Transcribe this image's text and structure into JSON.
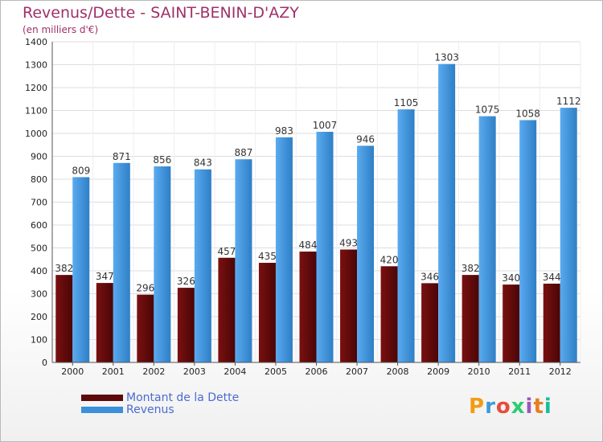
{
  "title": "Revenus/Dette - SAINT-BENIN-D'AZY",
  "subtitle": "(en milliers d'€)",
  "colors": {
    "dette": "#5c0a0a",
    "revenus": "#3c8fd9",
    "title": "#a0306a",
    "legend_text": "#4a6bd1"
  },
  "logo": {
    "letters": [
      "P",
      "r",
      "o",
      "x",
      "i",
      "t",
      "i"
    ],
    "colors": [
      "#f39c12",
      "#3c9ad9",
      "#e74c3c",
      "#2ecc71",
      "#9b59b6",
      "#e67e22",
      "#1abc9c"
    ]
  },
  "legend": [
    {
      "label": "Montant de la Dette",
      "color": "#5c0a0a"
    },
    {
      "label": "Revenus",
      "color": "#3c8fd9"
    }
  ],
  "chart_data": {
    "type": "bar",
    "title": "Revenus/Dette - SAINT-BENIN-D'AZY",
    "ylabel": "(en milliers d'€)",
    "xlabel": "",
    "ylim": [
      0,
      1400
    ],
    "yticks": [
      0,
      100,
      200,
      300,
      400,
      500,
      600,
      700,
      800,
      900,
      1000,
      1100,
      1200,
      1300,
      1400
    ],
    "grid": true,
    "categories": [
      "2000",
      "2001",
      "2002",
      "2003",
      "2004",
      "2005",
      "2006",
      "2007",
      "2008",
      "2009",
      "2010",
      "2011",
      "2012"
    ],
    "series": [
      {
        "name": "Montant de la Dette",
        "values": [
          382,
          347,
          296,
          326,
          457,
          435,
          484,
          493,
          420,
          346,
          382,
          340,
          344
        ]
      },
      {
        "name": "Revenus",
        "values": [
          809,
          871,
          856,
          843,
          887,
          983,
          1007,
          946,
          1105,
          1303,
          1075,
          1058,
          1112
        ]
      }
    ]
  }
}
